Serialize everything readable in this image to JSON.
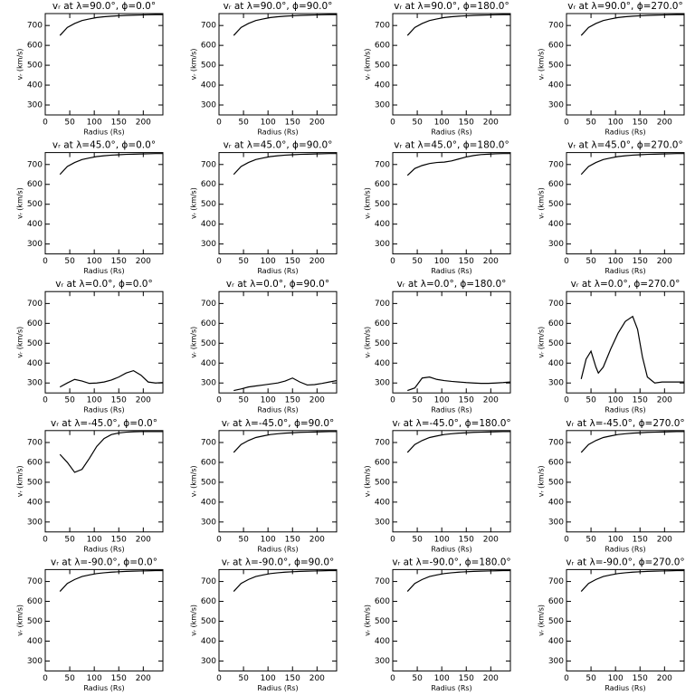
{
  "chart_data": [
    {
      "type": "line",
      "title": "vᵣ at λ=90.0°, ϕ=0.0°",
      "xlabel": "Radius (Rs)",
      "ylabel": "vᵣ (km/s)",
      "color": "#000000",
      "x": [
        30,
        45,
        60,
        75,
        90,
        105,
        120,
        135,
        150,
        165,
        180,
        195,
        210,
        225,
        240
      ],
      "values": [
        650,
        690,
        710,
        725,
        733,
        740,
        744,
        747,
        749,
        751,
        752,
        753,
        754,
        755,
        755
      ],
      "xlim": [
        0,
        240
      ],
      "ylim": [
        250,
        760
      ],
      "xticks": [
        0,
        50,
        100,
        150,
        200
      ],
      "yticks": [
        300,
        400,
        500,
        600,
        700
      ]
    },
    {
      "type": "line",
      "title": "vᵣ at λ=90.0°, ϕ=90.0°",
      "xlabel": "Radius (Rs)",
      "ylabel": "vᵣ (km/s)",
      "color": "#000000",
      "x": [
        30,
        45,
        60,
        75,
        90,
        105,
        120,
        135,
        150,
        165,
        180,
        195,
        210,
        225,
        240
      ],
      "values": [
        650,
        690,
        710,
        725,
        733,
        740,
        744,
        747,
        749,
        751,
        752,
        753,
        754,
        755,
        755
      ],
      "xlim": [
        0,
        240
      ],
      "ylim": [
        250,
        760
      ],
      "xticks": [
        0,
        50,
        100,
        150,
        200
      ],
      "yticks": [
        300,
        400,
        500,
        600,
        700
      ]
    },
    {
      "type": "line",
      "title": "vᵣ at λ=90.0°, ϕ=180.0°",
      "xlabel": "Radius (Rs)",
      "ylabel": "vᵣ (km/s)",
      "color": "#000000",
      "x": [
        30,
        45,
        60,
        75,
        90,
        105,
        120,
        135,
        150,
        165,
        180,
        195,
        210,
        225,
        240
      ],
      "values": [
        650,
        690,
        710,
        725,
        733,
        740,
        744,
        747,
        749,
        751,
        752,
        753,
        754,
        755,
        755
      ],
      "xlim": [
        0,
        240
      ],
      "ylim": [
        250,
        760
      ],
      "xticks": [
        0,
        50,
        100,
        150,
        200
      ],
      "yticks": [
        300,
        400,
        500,
        600,
        700
      ]
    },
    {
      "type": "line",
      "title": "vᵣ at λ=90.0°, ϕ=270.0°",
      "xlabel": "Radius (Rs)",
      "ylabel": "vᵣ (km/s)",
      "color": "#000000",
      "x": [
        30,
        45,
        60,
        75,
        90,
        105,
        120,
        135,
        150,
        165,
        180,
        195,
        210,
        225,
        240
      ],
      "values": [
        650,
        690,
        710,
        725,
        733,
        740,
        744,
        747,
        749,
        751,
        752,
        753,
        754,
        755,
        755
      ],
      "xlim": [
        0,
        240
      ],
      "ylim": [
        250,
        760
      ],
      "xticks": [
        0,
        50,
        100,
        150,
        200
      ],
      "yticks": [
        300,
        400,
        500,
        600,
        700
      ]
    },
    {
      "type": "line",
      "title": "vᵣ at λ=45.0°, ϕ=0.0°",
      "xlabel": "Radius (Rs)",
      "ylabel": "vᵣ (km/s)",
      "color": "#000000",
      "x": [
        30,
        45,
        60,
        75,
        90,
        105,
        120,
        135,
        150,
        165,
        180,
        195,
        210,
        225,
        240
      ],
      "values": [
        650,
        690,
        710,
        725,
        733,
        740,
        744,
        747,
        749,
        751,
        752,
        753,
        754,
        755,
        755
      ],
      "xlim": [
        0,
        240
      ],
      "ylim": [
        250,
        760
      ],
      "xticks": [
        0,
        50,
        100,
        150,
        200
      ],
      "yticks": [
        300,
        400,
        500,
        600,
        700
      ]
    },
    {
      "type": "line",
      "title": "vᵣ at λ=45.0°, ϕ=90.0°",
      "xlabel": "Radius (Rs)",
      "ylabel": "vᵣ (km/s)",
      "color": "#000000",
      "x": [
        30,
        45,
        60,
        75,
        90,
        105,
        120,
        135,
        150,
        165,
        180,
        195,
        210,
        225,
        240
      ],
      "values": [
        650,
        690,
        710,
        725,
        733,
        740,
        744,
        747,
        749,
        751,
        752,
        753,
        754,
        755,
        755
      ],
      "xlim": [
        0,
        240
      ],
      "ylim": [
        250,
        760
      ],
      "xticks": [
        0,
        50,
        100,
        150,
        200
      ],
      "yticks": [
        300,
        400,
        500,
        600,
        700
      ]
    },
    {
      "type": "line",
      "title": "vᵣ at λ=45.0°, ϕ=180.0°",
      "xlabel": "Radius (Rs)",
      "ylabel": "vᵣ (km/s)",
      "color": "#000000",
      "x": [
        30,
        45,
        60,
        75,
        90,
        105,
        120,
        135,
        150,
        165,
        180,
        195,
        210,
        225,
        240
      ],
      "values": [
        645,
        680,
        695,
        705,
        710,
        712,
        718,
        728,
        738,
        745,
        750,
        752,
        754,
        755,
        755
      ],
      "xlim": [
        0,
        240
      ],
      "ylim": [
        250,
        760
      ],
      "xticks": [
        0,
        50,
        100,
        150,
        200
      ],
      "yticks": [
        300,
        400,
        500,
        600,
        700
      ]
    },
    {
      "type": "line",
      "title": "vᵣ at λ=45.0°, ϕ=270.0°",
      "xlabel": "Radius (Rs)",
      "ylabel": "vᵣ (km/s)",
      "color": "#000000",
      "x": [
        30,
        45,
        60,
        75,
        90,
        105,
        120,
        135,
        150,
        165,
        180,
        195,
        210,
        225,
        240
      ],
      "values": [
        650,
        690,
        710,
        725,
        733,
        740,
        744,
        747,
        749,
        751,
        752,
        753,
        754,
        755,
        755
      ],
      "xlim": [
        0,
        240
      ],
      "ylim": [
        250,
        760
      ],
      "xticks": [
        0,
        50,
        100,
        150,
        200
      ],
      "yticks": [
        300,
        400,
        500,
        600,
        700
      ]
    },
    {
      "type": "line",
      "title": "vᵣ at λ=0.0°, ϕ=0.0°",
      "xlabel": "Radius (Rs)",
      "ylabel": "vᵣ (km/s)",
      "color": "#000000",
      "x": [
        30,
        45,
        60,
        75,
        90,
        105,
        120,
        135,
        150,
        165,
        180,
        195,
        210,
        225,
        240
      ],
      "values": [
        280,
        300,
        318,
        310,
        298,
        300,
        305,
        315,
        330,
        350,
        362,
        340,
        305,
        300,
        302
      ],
      "xlim": [
        0,
        240
      ],
      "ylim": [
        250,
        760
      ],
      "xticks": [
        0,
        50,
        100,
        150,
        200
      ],
      "yticks": [
        300,
        400,
        500,
        600,
        700
      ]
    },
    {
      "type": "line",
      "title": "vᵣ at λ=0.0°, ϕ=90.0°",
      "xlabel": "Radius (Rs)",
      "ylabel": "vᵣ (km/s)",
      "color": "#000000",
      "x": [
        30,
        45,
        60,
        75,
        90,
        105,
        120,
        135,
        150,
        165,
        180,
        195,
        210,
        225,
        240
      ],
      "values": [
        262,
        270,
        280,
        285,
        290,
        295,
        300,
        310,
        325,
        305,
        290,
        292,
        298,
        305,
        312
      ],
      "xlim": [
        0,
        240
      ],
      "ylim": [
        250,
        760
      ],
      "xticks": [
        0,
        50,
        100,
        150,
        200
      ],
      "yticks": [
        300,
        400,
        500,
        600,
        700
      ]
    },
    {
      "type": "line",
      "title": "vᵣ at λ=0.0°, ϕ=180.0°",
      "xlabel": "Radius (Rs)",
      "ylabel": "vᵣ (km/s)",
      "color": "#000000",
      "x": [
        30,
        45,
        60,
        75,
        90,
        105,
        120,
        135,
        150,
        165,
        180,
        195,
        210,
        225,
        240
      ],
      "values": [
        262,
        275,
        325,
        330,
        318,
        312,
        308,
        305,
        302,
        300,
        298,
        298,
        300,
        302,
        305
      ],
      "xlim": [
        0,
        240
      ],
      "ylim": [
        250,
        760
      ],
      "xticks": [
        0,
        50,
        100,
        150,
        200
      ],
      "yticks": [
        300,
        400,
        500,
        600,
        700
      ]
    },
    {
      "type": "line",
      "title": "vᵣ at λ=0.0°, ϕ=270.0°",
      "xlabel": "Radius (Rs)",
      "ylabel": "vᵣ (km/s)",
      "color": "#000000",
      "x": [
        30,
        40,
        50,
        60,
        65,
        75,
        90,
        105,
        120,
        135,
        145,
        155,
        165,
        180,
        195,
        210,
        225,
        240
      ],
      "values": [
        320,
        420,
        460,
        380,
        350,
        380,
        470,
        550,
        610,
        635,
        570,
        430,
        330,
        300,
        305,
        305,
        305,
        305
      ],
      "xlim": [
        0,
        240
      ],
      "ylim": [
        250,
        760
      ],
      "xticks": [
        0,
        50,
        100,
        150,
        200
      ],
      "yticks": [
        300,
        400,
        500,
        600,
        700
      ]
    },
    {
      "type": "line",
      "title": "vᵣ at λ=-45.0°, ϕ=0.0°",
      "xlabel": "Radius (Rs)",
      "ylabel": "vᵣ (km/s)",
      "color": "#000000",
      "x": [
        30,
        45,
        60,
        75,
        90,
        105,
        120,
        135,
        150,
        165,
        180,
        195,
        210,
        225,
        240
      ],
      "values": [
        640,
        600,
        550,
        565,
        620,
        680,
        720,
        740,
        748,
        752,
        754,
        755,
        755,
        755,
        755
      ],
      "xlim": [
        0,
        240
      ],
      "ylim": [
        250,
        760
      ],
      "xticks": [
        0,
        50,
        100,
        150,
        200
      ],
      "yticks": [
        300,
        400,
        500,
        600,
        700
      ]
    },
    {
      "type": "line",
      "title": "vᵣ at λ=-45.0°, ϕ=90.0°",
      "xlabel": "Radius (Rs)",
      "ylabel": "vᵣ (km/s)",
      "color": "#000000",
      "x": [
        30,
        45,
        60,
        75,
        90,
        105,
        120,
        135,
        150,
        165,
        180,
        195,
        210,
        225,
        240
      ],
      "values": [
        650,
        690,
        710,
        725,
        733,
        740,
        744,
        747,
        749,
        751,
        752,
        753,
        754,
        755,
        755
      ],
      "xlim": [
        0,
        240
      ],
      "ylim": [
        250,
        760
      ],
      "xticks": [
        0,
        50,
        100,
        150,
        200
      ],
      "yticks": [
        300,
        400,
        500,
        600,
        700
      ]
    },
    {
      "type": "line",
      "title": "vᵣ at λ=-45.0°, ϕ=180.0°",
      "xlabel": "Radius (Rs)",
      "ylabel": "vᵣ (km/s)",
      "color": "#000000",
      "x": [
        30,
        45,
        60,
        75,
        90,
        105,
        120,
        135,
        150,
        165,
        180,
        195,
        210,
        225,
        240
      ],
      "values": [
        650,
        690,
        710,
        725,
        733,
        740,
        744,
        747,
        749,
        751,
        752,
        753,
        754,
        755,
        755
      ],
      "xlim": [
        0,
        240
      ],
      "ylim": [
        250,
        760
      ],
      "xticks": [
        0,
        50,
        100,
        150,
        200
      ],
      "yticks": [
        300,
        400,
        500,
        600,
        700
      ]
    },
    {
      "type": "line",
      "title": "vᵣ at λ=-45.0°, ϕ=270.0°",
      "xlabel": "Radius (Rs)",
      "ylabel": "vᵣ (km/s)",
      "color": "#000000",
      "x": [
        30,
        45,
        60,
        75,
        90,
        105,
        120,
        135,
        150,
        165,
        180,
        195,
        210,
        225,
        240
      ],
      "values": [
        650,
        690,
        710,
        725,
        733,
        740,
        744,
        747,
        749,
        751,
        752,
        753,
        754,
        755,
        755
      ],
      "xlim": [
        0,
        240
      ],
      "ylim": [
        250,
        760
      ],
      "xticks": [
        0,
        50,
        100,
        150,
        200
      ],
      "yticks": [
        300,
        400,
        500,
        600,
        700
      ]
    },
    {
      "type": "line",
      "title": "vᵣ at λ=-90.0°, ϕ=0.0°",
      "xlabel": "Radius (Rs)",
      "ylabel": "vᵣ (km/s)",
      "color": "#000000",
      "x": [
        30,
        45,
        60,
        75,
        90,
        105,
        120,
        135,
        150,
        165,
        180,
        195,
        210,
        225,
        240
      ],
      "values": [
        650,
        690,
        710,
        725,
        733,
        740,
        744,
        747,
        749,
        751,
        752,
        753,
        754,
        755,
        755
      ],
      "xlim": [
        0,
        240
      ],
      "ylim": [
        250,
        760
      ],
      "xticks": [
        0,
        50,
        100,
        150,
        200
      ],
      "yticks": [
        300,
        400,
        500,
        600,
        700
      ]
    },
    {
      "type": "line",
      "title": "vᵣ at λ=-90.0°, ϕ=90.0°",
      "xlabel": "Radius (Rs)",
      "ylabel": "vᵣ (km/s)",
      "color": "#000000",
      "x": [
        30,
        45,
        60,
        75,
        90,
        105,
        120,
        135,
        150,
        165,
        180,
        195,
        210,
        225,
        240
      ],
      "values": [
        650,
        690,
        710,
        725,
        733,
        740,
        744,
        747,
        749,
        751,
        752,
        753,
        754,
        755,
        755
      ],
      "xlim": [
        0,
        240
      ],
      "ylim": [
        250,
        760
      ],
      "xticks": [
        0,
        50,
        100,
        150,
        200
      ],
      "yticks": [
        300,
        400,
        500,
        600,
        700
      ]
    },
    {
      "type": "line",
      "title": "vᵣ at λ=-90.0°, ϕ=180.0°",
      "xlabel": "Radius (Rs)",
      "ylabel": "vᵣ (km/s)",
      "color": "#000000",
      "x": [
        30,
        45,
        60,
        75,
        90,
        105,
        120,
        135,
        150,
        165,
        180,
        195,
        210,
        225,
        240
      ],
      "values": [
        650,
        690,
        710,
        725,
        733,
        740,
        744,
        747,
        749,
        751,
        752,
        753,
        754,
        755,
        755
      ],
      "xlim": [
        0,
        240
      ],
      "ylim": [
        250,
        760
      ],
      "xticks": [
        0,
        50,
        100,
        150,
        200
      ],
      "yticks": [
        300,
        400,
        500,
        600,
        700
      ]
    },
    {
      "type": "line",
      "title": "vᵣ at λ=-90.0°, ϕ=270.0°",
      "xlabel": "Radius (Rs)",
      "ylabel": "vᵣ (km/s)",
      "color": "#000000",
      "x": [
        30,
        45,
        60,
        75,
        90,
        105,
        120,
        135,
        150,
        165,
        180,
        195,
        210,
        225,
        240
      ],
      "values": [
        650,
        690,
        710,
        725,
        733,
        740,
        744,
        747,
        749,
        751,
        752,
        753,
        754,
        755,
        755
      ],
      "xlim": [
        0,
        240
      ],
      "ylim": [
        250,
        760
      ],
      "xticks": [
        0,
        50,
        100,
        150,
        200
      ],
      "yticks": [
        300,
        400,
        500,
        600,
        700
      ]
    }
  ]
}
